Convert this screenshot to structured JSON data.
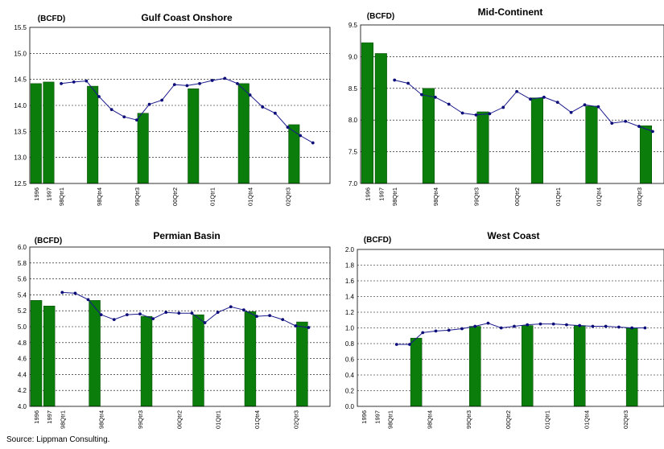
{
  "source": "Source:  Lippman Consulting.",
  "chart_data": [
    {
      "type": "bar",
      "title": "Gulf Coast Onshore",
      "unit_label": "(BCFD)",
      "ylim": [
        12.5,
        15.5
      ],
      "yticks": [
        "12.5",
        "13.0",
        "13.5",
        "14.0",
        "14.5",
        "15.0",
        "15.5"
      ],
      "x_labels": [
        "1996",
        "1997",
        "98Qtr1",
        "98Qtr4",
        "99Qtr3",
        "00Qtr2",
        "01Qtr1",
        "01Qtr4",
        "02Qtr3"
      ],
      "grid": true,
      "series": [
        {
          "kind": "bar",
          "values": [
            {
              "x": 0,
              "y": 14.42
            },
            {
              "x": 1,
              "y": 14.45
            },
            {
              "x": 4.5,
              "y": 14.37
            },
            {
              "x": 8.5,
              "y": 13.85
            },
            {
              "x": 12.5,
              "y": 14.32
            },
            {
              "x": 16.5,
              "y": 14.42
            },
            {
              "x": 20.5,
              "y": 13.63
            }
          ]
        },
        {
          "kind": "line",
          "values": [
            {
              "x": 2,
              "y": 14.42
            },
            {
              "x": 3,
              "y": 14.45
            },
            {
              "x": 4,
              "y": 14.47
            },
            {
              "x": 5,
              "y": 14.17
            },
            {
              "x": 6,
              "y": 13.92
            },
            {
              "x": 7,
              "y": 13.78
            },
            {
              "x": 8,
              "y": 13.72
            },
            {
              "x": 9,
              "y": 14.02
            },
            {
              "x": 10,
              "y": 14.1
            },
            {
              "x": 11,
              "y": 14.4
            },
            {
              "x": 12,
              "y": 14.38
            },
            {
              "x": 13,
              "y": 14.42
            },
            {
              "x": 14,
              "y": 14.48
            },
            {
              "x": 15,
              "y": 14.52
            },
            {
              "x": 16,
              "y": 14.42
            },
            {
              "x": 17,
              "y": 14.2
            },
            {
              "x": 18,
              "y": 13.97
            },
            {
              "x": 19,
              "y": 13.85
            },
            {
              "x": 20,
              "y": 13.58
            },
            {
              "x": 21,
              "y": 13.42
            },
            {
              "x": 22,
              "y": 13.28
            }
          ]
        }
      ]
    },
    {
      "type": "bar",
      "title": "Mid-Continent",
      "unit_label": "(BCFD)",
      "ylim": [
        7.0,
        9.5
      ],
      "yticks": [
        "7.0",
        "7.5",
        "8.0",
        "8.5",
        "9.0",
        "9.5"
      ],
      "x_labels": [
        "1996",
        "1997",
        "98Qtr1",
        "98Qtr4",
        "99Qtr3",
        "00Qtr2",
        "01Qtr1",
        "01Qtr4",
        "02Qtr3"
      ],
      "grid": true,
      "series": [
        {
          "kind": "bar",
          "values": [
            {
              "x": 0,
              "y": 9.22
            },
            {
              "x": 1,
              "y": 9.05
            },
            {
              "x": 4.5,
              "y": 8.5
            },
            {
              "x": 8.5,
              "y": 8.13
            },
            {
              "x": 12.5,
              "y": 8.35
            },
            {
              "x": 16.5,
              "y": 8.22
            },
            {
              "x": 20.5,
              "y": 7.91
            }
          ]
        },
        {
          "kind": "line",
          "values": [
            {
              "x": 2,
              "y": 8.63
            },
            {
              "x": 3,
              "y": 8.58
            },
            {
              "x": 4,
              "y": 8.4
            },
            {
              "x": 5,
              "y": 8.36
            },
            {
              "x": 6,
              "y": 8.25
            },
            {
              "x": 7,
              "y": 8.11
            },
            {
              "x": 8,
              "y": 8.08
            },
            {
              "x": 9,
              "y": 8.1
            },
            {
              "x": 10,
              "y": 8.2
            },
            {
              "x": 11,
              "y": 8.45
            },
            {
              "x": 12,
              "y": 8.33
            },
            {
              "x": 13,
              "y": 8.36
            },
            {
              "x": 14,
              "y": 8.28
            },
            {
              "x": 15,
              "y": 8.12
            },
            {
              "x": 16,
              "y": 8.24
            },
            {
              "x": 17,
              "y": 8.21
            },
            {
              "x": 18,
              "y": 7.95
            },
            {
              "x": 19,
              "y": 7.98
            },
            {
              "x": 20,
              "y": 7.9
            },
            {
              "x": 21,
              "y": 7.82
            }
          ]
        }
      ]
    },
    {
      "type": "bar",
      "title": "Permian Basin",
      "unit_label": "(BCFD)",
      "ylim": [
        4.0,
        6.0
      ],
      "yticks": [
        "4.0",
        "4.2",
        "4.4",
        "4.6",
        "4.8",
        "5.0",
        "5.2",
        "5.4",
        "5.6",
        "5.8",
        "6.0"
      ],
      "x_labels": [
        "1996",
        "1997",
        "98Qtr1",
        "98Qtr4",
        "99Qtr3",
        "00Qtr2",
        "01Qtr1",
        "01Qtr4",
        "02Qtr3"
      ],
      "grid": true,
      "series": [
        {
          "kind": "bar",
          "values": [
            {
              "x": 0,
              "y": 5.33
            },
            {
              "x": 1,
              "y": 5.26
            },
            {
              "x": 4.5,
              "y": 5.33
            },
            {
              "x": 8.5,
              "y": 5.13
            },
            {
              "x": 12.5,
              "y": 5.15
            },
            {
              "x": 16.5,
              "y": 5.19
            },
            {
              "x": 20.5,
              "y": 5.06
            }
          ]
        },
        {
          "kind": "line",
          "values": [
            {
              "x": 2,
              "y": 5.43
            },
            {
              "x": 3,
              "y": 5.42
            },
            {
              "x": 4,
              "y": 5.34
            },
            {
              "x": 5,
              "y": 5.15
            },
            {
              "x": 6,
              "y": 5.09
            },
            {
              "x": 7,
              "y": 5.15
            },
            {
              "x": 8,
              "y": 5.16
            },
            {
              "x": 9,
              "y": 5.1
            },
            {
              "x": 10,
              "y": 5.18
            },
            {
              "x": 11,
              "y": 5.17
            },
            {
              "x": 12,
              "y": 5.17
            },
            {
              "x": 13,
              "y": 5.05
            },
            {
              "x": 14,
              "y": 5.18
            },
            {
              "x": 15,
              "y": 5.25
            },
            {
              "x": 16,
              "y": 5.21
            },
            {
              "x": 17,
              "y": 5.13
            },
            {
              "x": 18,
              "y": 5.14
            },
            {
              "x": 19,
              "y": 5.09
            },
            {
              "x": 20,
              "y": 5.01
            },
            {
              "x": 21,
              "y": 4.99
            }
          ]
        }
      ]
    },
    {
      "type": "bar",
      "title": "West Coast",
      "unit_label": "(BCFD)",
      "ylim": [
        0.0,
        2.0
      ],
      "yticks": [
        "0.0",
        "0.2",
        "0.4",
        "0.6",
        "0.8",
        "1.0",
        "1.2",
        "1.4",
        "1.6",
        "1.8",
        "2.0"
      ],
      "x_labels": [
        "1996",
        "1997",
        "98Qtr1",
        "98Qtr4",
        "99Qtr3",
        "00Qtr2",
        "01Qtr1",
        "01Qtr4",
        "02Qtr3"
      ],
      "grid": true,
      "series": [
        {
          "kind": "bar",
          "values": [
            {
              "x": 4,
              "y": 0.87
            },
            {
              "x": 8.5,
              "y": 1.02
            },
            {
              "x": 12.5,
              "y": 1.03
            },
            {
              "x": 16.5,
              "y": 1.03
            },
            {
              "x": 20.5,
              "y": 1.0
            }
          ]
        },
        {
          "kind": "line",
          "values": [
            {
              "x": 2.5,
              "y": 0.79
            },
            {
              "x": 3.5,
              "y": 0.79
            },
            {
              "x": 4.5,
              "y": 0.94
            },
            {
              "x": 5.5,
              "y": 0.96
            },
            {
              "x": 6.5,
              "y": 0.97
            },
            {
              "x": 7.5,
              "y": 0.99
            },
            {
              "x": 8.5,
              "y": 1.02
            },
            {
              "x": 9.5,
              "y": 1.06
            },
            {
              "x": 10.5,
              "y": 1.0
            },
            {
              "x": 11.5,
              "y": 1.02
            },
            {
              "x": 12.5,
              "y": 1.04
            },
            {
              "x": 13.5,
              "y": 1.05
            },
            {
              "x": 14.5,
              "y": 1.05
            },
            {
              "x": 15.5,
              "y": 1.04
            },
            {
              "x": 16.5,
              "y": 1.03
            },
            {
              "x": 17.5,
              "y": 1.02
            },
            {
              "x": 18.5,
              "y": 1.02
            },
            {
              "x": 19.5,
              "y": 1.01
            },
            {
              "x": 20.5,
              "y": 1.0
            },
            {
              "x": 21.5,
              "y": 1.0
            }
          ]
        }
      ]
    }
  ]
}
